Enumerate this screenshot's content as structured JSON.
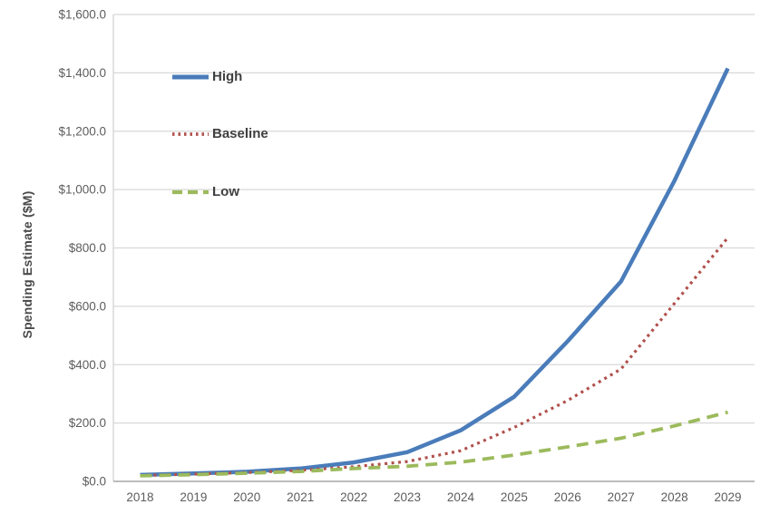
{
  "chart_data": {
    "type": "line",
    "title": "",
    "xlabel": "",
    "ylabel": "Spending Estimate ($M)",
    "x": [
      "2018",
      "2019",
      "2020",
      "2021",
      "2022",
      "2023",
      "2024",
      "2025",
      "2026",
      "2027",
      "2028",
      "2029"
    ],
    "series": [
      {
        "name": "High",
        "color": "#4a7cba",
        "line_style": "solid",
        "values": [
          22,
          27,
          33,
          44,
          65,
          100,
          175,
          290,
          480,
          685,
          1030,
          1415
        ]
      },
      {
        "name": "Baseline",
        "color": "#b0504c",
        "line_style": "dotted",
        "values": [
          20,
          25,
          30,
          38,
          50,
          68,
          105,
          185,
          277,
          385,
          610,
          835
        ]
      },
      {
        "name": "Low",
        "color": "#9cba5c",
        "line_style": "dashed",
        "values": [
          19,
          23,
          28,
          34,
          44,
          52,
          66,
          90,
          118,
          148,
          190,
          237
        ]
      }
    ],
    "ylim": [
      0,
      1600
    ],
    "ytick_step": 200,
    "ytick_labels": [
      "$0.0",
      "$200.0",
      "$400.0",
      "$600.0",
      "$800.0",
      "$1,000.0",
      "$1,200.0",
      "$1,400.0",
      "$1,600.0"
    ],
    "grid": true,
    "legend_position": "inside-top-left",
    "colors": {
      "gridline": "#d8d8d8",
      "axis_line": "#a6a6a6",
      "tick_text": "#5d5d5d"
    }
  }
}
